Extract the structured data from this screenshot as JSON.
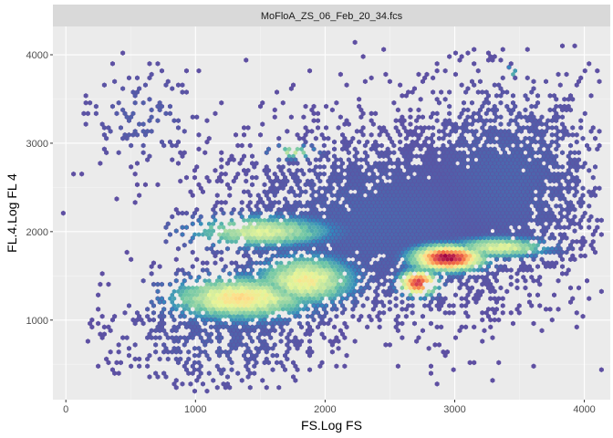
{
  "chart_data": {
    "type": "heatmap",
    "subtype": "hexbin-density",
    "facet_label": "MoFloA_ZS_06_Feb_20_34.fcs",
    "xlabel": "FS.Log FS",
    "ylabel": "FL.4.Log FL 4",
    "xlim": [
      -100,
      4200
    ],
    "ylim": [
      100,
      4320
    ],
    "x_ticks": [
      0,
      1000,
      2000,
      3000,
      4000
    ],
    "y_ticks": [
      1000,
      2000,
      3000,
      4000
    ],
    "grid": true,
    "legend": "none",
    "colormap": [
      "#5e4fa2",
      "#3288bd",
      "#66c2a5",
      "#abdda4",
      "#e6f598",
      "#fee08b",
      "#fdae61",
      "#f46d43",
      "#d53e4f",
      "#9e0142"
    ],
    "density_clusters": [
      {
        "x": 1350,
        "y": 1250,
        "sx": 330,
        "sy": 150,
        "w": 1.0,
        "peak": 0.55
      },
      {
        "x": 1850,
        "y": 1450,
        "sx": 230,
        "sy": 170,
        "w": 0.7,
        "peak": 0.5
      },
      {
        "x": 1500,
        "y": 2000,
        "sx": 340,
        "sy": 110,
        "w": 0.6,
        "peak": 0.42
      },
      {
        "x": 2950,
        "y": 1700,
        "sx": 170,
        "sy": 90,
        "w": 0.6,
        "peak": 1.0
      },
      {
        "x": 2720,
        "y": 1420,
        "sx": 90,
        "sy": 90,
        "w": 0.4,
        "peak": 0.9
      },
      {
        "x": 3350,
        "y": 1820,
        "sx": 230,
        "sy": 70,
        "w": 0.5,
        "peak": 0.45
      },
      {
        "x": 1750,
        "y": 2900,
        "sx": 110,
        "sy": 50,
        "w": 0.15,
        "peak": 0.35
      },
      {
        "x": 3430,
        "y": 3810,
        "sx": 25,
        "sy": 30,
        "w": 0.05,
        "peak": 0.45
      },
      {
        "x": 2400,
        "y": 2100,
        "sx": 700,
        "sy": 600,
        "w": 0.9,
        "peak": 0.05
      },
      {
        "x": 3400,
        "y": 2600,
        "sx": 450,
        "sy": 650,
        "w": 0.7,
        "peak": 0.05
      },
      {
        "x": 600,
        "y": 3300,
        "sx": 250,
        "sy": 300,
        "w": 0.25,
        "peak": 0.04
      },
      {
        "x": 1200,
        "y": 800,
        "sx": 450,
        "sy": 350,
        "w": 0.5,
        "peak": 0.04
      }
    ]
  }
}
